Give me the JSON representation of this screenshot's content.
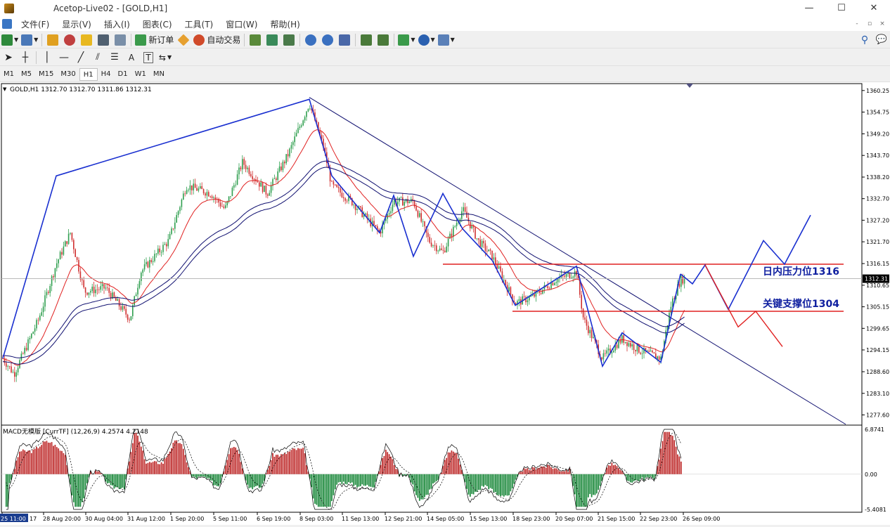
{
  "window": {
    "title": "Acetop-Live02 - [GOLD,H1]",
    "minimize": "—",
    "maximize": "☐",
    "close": "✕"
  },
  "menu": [
    "文件(F)",
    "显示(V)",
    "插入(I)",
    "图表(C)",
    "工具(T)",
    "窗口(W)",
    "帮助(H)"
  ],
  "toolbar": {
    "new_order": "新订单",
    "auto_trade": "自动交易"
  },
  "drawing_tools": {
    "text_tool": "A",
    "label_tool": "T"
  },
  "timeframes": [
    "M1",
    "M5",
    "M15",
    "M30",
    "H1",
    "H4",
    "D1",
    "W1",
    "MN"
  ],
  "active_timeframe": "H1",
  "chart": {
    "header": "GOLD,H1  1312.70 1312.70 1311.86 1312.31",
    "current_price": "1312.31",
    "price_ticks": [
      "1360.25",
      "1354.75",
      "1349.20",
      "1343.70",
      "1338.20",
      "1332.70",
      "1327.20",
      "1321.70",
      "1316.15",
      "1310.65",
      "1305.15",
      "1299.65",
      "1294.15",
      "1288.60",
      "1283.10",
      "1277.60"
    ],
    "time_ticks": [
      "25 11:00",
      "28 Aug 20:00",
      "30 Aug 04:00",
      "31 Aug 12:00",
      "1 Sep 20:00",
      "5 Sep 11:00",
      "6 Sep 19:00",
      "8 Sep 03:00",
      "11 Sep 13:00",
      "12 Sep 21:00",
      "14 Sep 05:00",
      "15 Sep 13:00",
      "18 Sep 23:00",
      "20 Sep 07:00",
      "21 Sep 15:00",
      "22 Sep 23:00",
      "26 Sep 09:00"
    ],
    "time_tick_17": "17",
    "resistance_label": "日内压力位1316",
    "support_label": "关键支撑位1304",
    "macd_header": "MACD无模版 [CurrTF] (12,26,9) 4.2574 4.2148",
    "macd_ticks": [
      "6.8741",
      "0.00",
      "-5.4081"
    ],
    "colors": {
      "bull": "#2e9e4e",
      "bear": "#d03030",
      "ma_red": "#e02020",
      "ma_blue": "#101070",
      "zig": "#1a30d0",
      "label": "#1020a0"
    }
  },
  "chart_data": {
    "type": "candlestick",
    "symbol": "GOLD",
    "timeframe": "H1",
    "last": {
      "open": 1312.7,
      "high": 1312.7,
      "low": 1311.86,
      "close": 1312.31
    },
    "ylim": [
      1275.0,
      1362.0
    ],
    "levels": [
      {
        "name": "日内压力位1316",
        "value": 1316.0
      },
      {
        "name": "关键支撑位1304",
        "value": 1304.0
      }
    ],
    "zigzag_swings": [
      1292.0,
      1338.5,
      1358.0,
      1338.5,
      1324.0,
      1333.5,
      1318.0,
      1334.0,
      1325.0,
      1317.0,
      1305.5,
      1315.5,
      1290.0,
      1298.5,
      1291.0,
      1313.5,
      1311.0,
      1315.8,
      1304.5,
      1322.0,
      1316.0,
      1328.5
    ],
    "macd": {
      "fast": 12,
      "slow": 26,
      "signal": 9,
      "main": 4.2574,
      "signal_value": 4.2148,
      "ylim": [
        -5.4081,
        6.8741
      ]
    }
  }
}
